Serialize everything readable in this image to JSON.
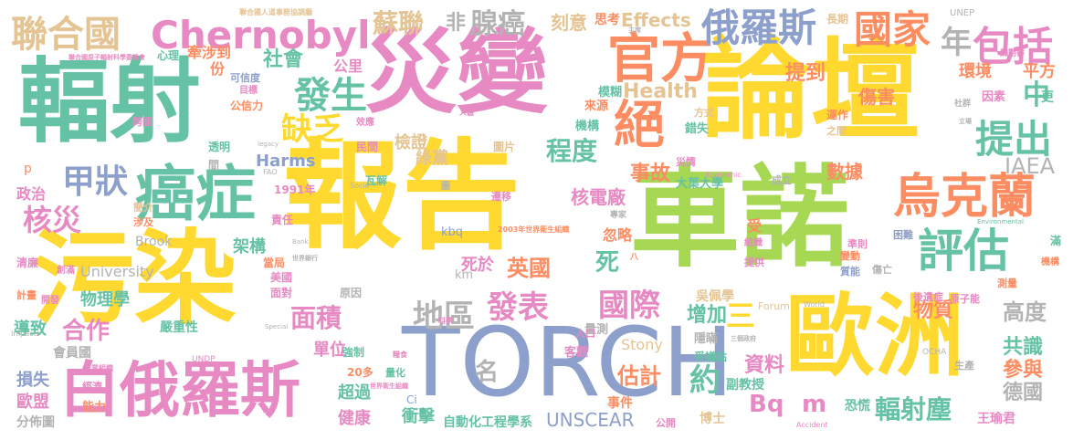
{
  "palette": {
    "green": "#66c2a5",
    "orange": "#fc8d62",
    "blue": "#8da0cb",
    "pink": "#e78ac3",
    "lime": "#a6d854",
    "yellow": "#ffd92f",
    "tan": "#e5c494",
    "gray": "#b3b3b3"
  },
  "words": [
    {
      "text": "報告",
      "color": "yellow"
    },
    {
      "text": "車諾",
      "color": "lime"
    },
    {
      "text": "論壇",
      "color": "yellow"
    },
    {
      "text": "污染",
      "color": "yellow"
    },
    {
      "text": "災變",
      "color": "pink"
    },
    {
      "text": "輻射",
      "color": "green"
    },
    {
      "text": "歐洲",
      "color": "yellow"
    },
    {
      "text": "TORCH",
      "color": "blue"
    },
    {
      "text": "白俄羅斯",
      "color": "pink"
    },
    {
      "text": "Chernobyl",
      "color": "pink"
    },
    {
      "text": "癌症",
      "color": "green"
    },
    {
      "text": "烏克蘭",
      "color": "orange"
    },
    {
      "text": "評估",
      "color": "green"
    },
    {
      "text": "官方",
      "color": "orange"
    },
    {
      "text": "俄羅斯",
      "color": "blue"
    },
    {
      "text": "國家",
      "color": "orange"
    },
    {
      "text": "包括",
      "color": "pink"
    },
    {
      "text": "年",
      "color": "gray"
    },
    {
      "text": "聯合國",
      "color": "tan"
    },
    {
      "text": "發生",
      "color": "green"
    },
    {
      "text": "缺乏",
      "color": "yellow"
    },
    {
      "text": "絕",
      "color": "orange"
    },
    {
      "text": "提出",
      "color": "green"
    },
    {
      "text": "甲狀",
      "color": "blue"
    },
    {
      "text": "核災",
      "color": "pink"
    },
    {
      "text": "蘇聯",
      "color": "tan"
    },
    {
      "text": "腺癌",
      "color": "gray"
    },
    {
      "text": "非",
      "color": "gray"
    },
    {
      "text": "刻意",
      "color": "tan"
    },
    {
      "text": "思考",
      "color": "orange"
    },
    {
      "text": "Effects",
      "color": "tan"
    },
    {
      "text": "社會",
      "color": "green"
    },
    {
      "text": "牽涉到",
      "color": "orange"
    },
    {
      "text": "公里",
      "color": "pink"
    },
    {
      "text": "份",
      "color": "orange"
    },
    {
      "text": "心理",
      "color": "green"
    },
    {
      "text": "Health",
      "color": "tan"
    },
    {
      "text": "程度",
      "color": "green"
    },
    {
      "text": "事故",
      "color": "orange"
    },
    {
      "text": "中",
      "color": "green"
    },
    {
      "text": "提到",
      "color": "orange"
    },
    {
      "text": "傷害",
      "color": "orange"
    },
    {
      "text": "環境",
      "color": "orange"
    },
    {
      "text": "平方",
      "color": "orange"
    },
    {
      "text": "IAEA",
      "color": "gray"
    },
    {
      "text": "數據",
      "color": "orange"
    },
    {
      "text": "面積",
      "color": "pink"
    },
    {
      "text": "地區",
      "color": "gray"
    },
    {
      "text": "發表",
      "color": "pink"
    },
    {
      "text": "國際",
      "color": "pink"
    },
    {
      "text": "英國",
      "color": "orange"
    },
    {
      "text": "死",
      "color": "green"
    },
    {
      "text": "核電廠",
      "color": "pink"
    },
    {
      "text": "檢證",
      "color": "tan"
    },
    {
      "text": "綠黨",
      "color": "tan"
    },
    {
      "text": "三",
      "color": "yellow"
    },
    {
      "text": "增加",
      "color": "green"
    },
    {
      "text": "高度",
      "color": "gray"
    },
    {
      "text": "共識",
      "color": "green"
    },
    {
      "text": "參與",
      "color": "orange"
    },
    {
      "text": "德國",
      "color": "gray"
    },
    {
      "text": "合作",
      "color": "pink"
    },
    {
      "text": "名",
      "color": "gray"
    },
    {
      "text": "估計",
      "color": "orange"
    },
    {
      "text": "約",
      "color": "green"
    },
    {
      "text": "資料",
      "color": "pink"
    },
    {
      "text": "Bq",
      "color": "pink"
    },
    {
      "text": "m",
      "color": "pink"
    },
    {
      "text": "輻射塵",
      "color": "green"
    },
    {
      "text": "UNSCEAR",
      "color": "blue"
    },
    {
      "text": "衝擊",
      "color": "green"
    },
    {
      "text": "健康",
      "color": "pink"
    },
    {
      "text": "超過",
      "color": "green"
    },
    {
      "text": "單位",
      "color": "pink"
    },
    {
      "text": "物質",
      "color": "orange"
    },
    {
      "text": "死於",
      "color": "pink"
    },
    {
      "text": "架構",
      "color": "green"
    },
    {
      "text": "Harms",
      "color": "blue"
    },
    {
      "text": "University",
      "color": "gray"
    },
    {
      "text": "Brook",
      "color": "gray"
    },
    {
      "text": "政治",
      "color": "pink"
    },
    {
      "text": "物理學",
      "color": "green"
    },
    {
      "text": "歐盟",
      "color": "pink"
    },
    {
      "text": "損失",
      "color": "blue"
    },
    {
      "text": "分佈圖",
      "color": "gray"
    },
    {
      "text": "會員國",
      "color": "gray"
    },
    {
      "text": "導致",
      "color": "green"
    },
    {
      "text": "嚴重性",
      "color": "green"
    },
    {
      "text": "強制",
      "color": "green"
    },
    {
      "text": "自動化工程學系",
      "color": "green"
    },
    {
      "text": "王瑜君",
      "color": "pink"
    },
    {
      "text": "博士",
      "color": "tan"
    },
    {
      "text": "副教授",
      "color": "green"
    },
    {
      "text": "恐慌",
      "color": "green"
    },
    {
      "text": "公開",
      "color": "pink"
    },
    {
      "text": "事件",
      "color": "orange"
    },
    {
      "text": "吳佩學",
      "color": "tan"
    },
    {
      "text": "忽略",
      "color": "orange"
    },
    {
      "text": "量測",
      "color": "gray"
    },
    {
      "text": "隱瞞",
      "color": "gray"
    },
    {
      "text": "客觀",
      "color": "pink"
    },
    {
      "text": "Stony",
      "color": "tan"
    },
    {
      "text": "爭議點",
      "color": "green"
    },
    {
      "text": "機構",
      "color": "green"
    },
    {
      "text": "模糊",
      "color": "green"
    },
    {
      "text": "來源",
      "color": "orange"
    },
    {
      "text": "錯失",
      "color": "green"
    },
    {
      "text": "運作",
      "color": "orange"
    },
    {
      "text": "因素",
      "color": "pink"
    },
    {
      "text": "更",
      "color": "green"
    },
    {
      "text": "長期",
      "color": "tan"
    },
    {
      "text": "歸劃書",
      "color": "pink"
    },
    {
      "text": "公信力",
      "color": "orange"
    },
    {
      "text": "可信度",
      "color": "blue"
    },
    {
      "text": "目標",
      "color": "pink"
    },
    {
      "text": "透明",
      "color": "green"
    },
    {
      "text": "民間",
      "color": "pink"
    },
    {
      "text": "瓦解",
      "color": "green"
    },
    {
      "text": "圖片",
      "color": "tan"
    },
    {
      "text": "大葉大學",
      "color": "green"
    },
    {
      "text": "成立",
      "color": "gray"
    },
    {
      "text": "2003年世界衛生組織",
      "color": "orange"
    },
    {
      "text": "1991年",
      "color": "pink"
    },
    {
      "text": "責任",
      "color": "pink"
    },
    {
      "text": "美國",
      "color": "pink"
    },
    {
      "text": "面對",
      "color": "pink"
    },
    {
      "text": "原因",
      "color": "gray"
    },
    {
      "text": "當局",
      "color": "orange"
    },
    {
      "text": "kbq",
      "color": "blue"
    },
    {
      "text": "km",
      "color": "gray"
    },
    {
      "text": "20多",
      "color": "orange"
    },
    {
      "text": "量化",
      "color": "green"
    },
    {
      "text": "Ci",
      "color": "blue"
    },
    {
      "text": "受",
      "color": "orange"
    },
    {
      "text": "組織",
      "color": "pink"
    },
    {
      "text": "準則",
      "color": "pink"
    },
    {
      "text": "困難",
      "color": "blue"
    },
    {
      "text": "變動",
      "color": "orange"
    },
    {
      "text": "提供",
      "color": "pink"
    },
    {
      "text": "質能",
      "color": "blue"
    },
    {
      "text": "傷亡",
      "color": "gray"
    },
    {
      "text": "後遺症",
      "color": "pink"
    },
    {
      "text": "原子能",
      "color": "pink"
    },
    {
      "text": "測量",
      "color": "orange"
    },
    {
      "text": "滿",
      "color": "green"
    },
    {
      "text": "機構",
      "color": "orange"
    },
    {
      "text": "生產",
      "color": "gray"
    },
    {
      "text": "人口",
      "color": "pink"
    },
    {
      "text": "遷移",
      "color": "pink"
    },
    {
      "text": "專家",
      "color": "gray"
    },
    {
      "text": "八",
      "color": "orange"
    },
    {
      "text": "災情",
      "color": "pink"
    },
    {
      "text": "方式",
      "color": "tan"
    },
    {
      "text": "之間",
      "color": "tan"
    },
    {
      "text": "效應",
      "color": "pink"
    },
    {
      "text": "跨國",
      "color": "pink"
    },
    {
      "text": "簡介",
      "color": "tan"
    },
    {
      "text": "涉及",
      "color": "orange"
    },
    {
      "text": "清廉",
      "color": "pink"
    },
    {
      "text": "創滿",
      "color": "pink"
    },
    {
      "text": "計畫",
      "color": "orange"
    },
    {
      "text": "開發",
      "color": "pink"
    },
    {
      "text": "經濟",
      "color": "pink"
    },
    {
      "text": "能力",
      "color": "orange"
    },
    {
      "text": "間",
      "color": "gray"
    },
    {
      "text": "p",
      "color": "orange"
    },
    {
      "text": "UNEP",
      "color": "gray"
    },
    {
      "text": "OCHA",
      "color": "gray"
    },
    {
      "text": "UNDP",
      "color": "pink"
    },
    {
      "text": "FAO",
      "color": "gray"
    },
    {
      "text": "Forum",
      "color": "tan"
    },
    {
      "text": "Impacts",
      "color": "gray"
    },
    {
      "text": "Economic",
      "color": "pink"
    },
    {
      "text": "Socio",
      "color": "gray"
    },
    {
      "text": "Special",
      "color": "gray"
    },
    {
      "text": "Bank",
      "color": "gray"
    },
    {
      "text": "World",
      "color": "gray"
    },
    {
      "text": "legacy",
      "color": "gray"
    },
    {
      "text": "Accident",
      "color": "pink"
    },
    {
      "text": "Environmental",
      "color": "green"
    },
    {
      "text": "聯合國人道事務協調廳",
      "color": "tan"
    },
    {
      "text": "聯合國原子輻射科學委員會",
      "color": "pink"
    },
    {
      "text": "農業組織",
      "color": "pink"
    },
    {
      "text": "世界銀行",
      "color": "gray"
    },
    {
      "text": "三個政府",
      "color": "gray"
    },
    {
      "text": "世界衛生組織",
      "color": "pink"
    },
    {
      "text": "糧食",
      "color": "pink"
    },
    {
      "text": "科學",
      "color": "pink"
    },
    {
      "text": "人體",
      "color": "pink"
    },
    {
      "text": "圖",
      "color": "gray"
    },
    {
      "text": "社群",
      "color": "gray"
    },
    {
      "text": "主席",
      "color": "gray"
    },
    {
      "text": "立場",
      "color": "gray"
    }
  ]
}
